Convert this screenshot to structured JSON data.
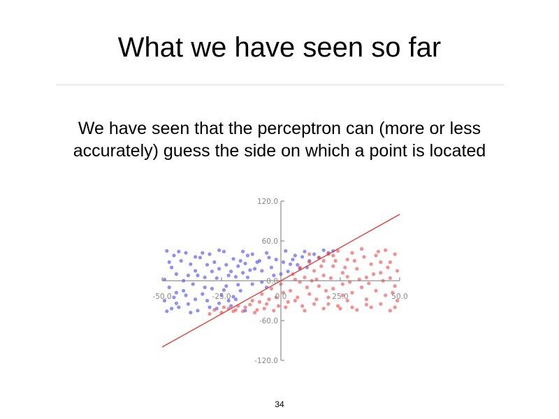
{
  "slide": {
    "title": "What we have seen so far",
    "body_lines": [
      "We have seen that the perceptron can (more or less",
      "accurately) guess the side on which a point is located"
    ],
    "page_number": "34"
  },
  "colors": {
    "class_a": "#3333ee",
    "class_b": "#ee3333",
    "boundary": "#e8362e",
    "axis": "#777777",
    "tick_label": "#888888"
  },
  "chart_data": {
    "type": "scatter",
    "xlim": [
      -50,
      50
    ],
    "ylim": [
      -120,
      120
    ],
    "x_ticks": [
      "-50.0",
      "-25.0",
      "0.0",
      "25.0",
      "50.0"
    ],
    "y_ticks": [
      "120.0",
      "60.0",
      "0.0",
      "-60.0",
      "-120.0"
    ],
    "grid": false,
    "boundary_line": {
      "x": [
        -50,
        50
      ],
      "y": [
        -100,
        100
      ]
    },
    "series": [
      {
        "color": "#3333ee",
        "points": [
          [
            -48,
            45
          ],
          [
            -45,
            38
          ],
          [
            -42,
            30
          ],
          [
            -46,
            20
          ],
          [
            -44,
            10
          ],
          [
            -40,
            42
          ],
          [
            -38,
            25
          ],
          [
            -36,
            15
          ],
          [
            -34,
            35
          ],
          [
            -32,
            5
          ],
          [
            -30,
            40
          ],
          [
            -28,
            28
          ],
          [
            -26,
            18
          ],
          [
            -24,
            44
          ],
          [
            -22,
            8
          ],
          [
            -20,
            33
          ],
          [
            -18,
            22
          ],
          [
            -16,
            12
          ],
          [
            -14,
            38
          ],
          [
            -12,
            -5
          ],
          [
            -10,
            28
          ],
          [
            -8,
            15
          ],
          [
            -6,
            42
          ],
          [
            -4,
            20
          ],
          [
            -2,
            32
          ],
          [
            0,
            10
          ],
          [
            2,
            45
          ],
          [
            4,
            25
          ],
          [
            6,
            38
          ],
          [
            8,
            18
          ],
          [
            10,
            44
          ],
          [
            12,
            30
          ],
          [
            14,
            40
          ],
          [
            16,
            35
          ],
          [
            18,
            46
          ],
          [
            20,
            42
          ],
          [
            22,
            45
          ],
          [
            -47,
            -10
          ],
          [
            -45,
            -25
          ],
          [
            -43,
            -40
          ],
          [
            -41,
            -15
          ],
          [
            -39,
            -35
          ],
          [
            -37,
            -5
          ],
          [
            -35,
            -45
          ],
          [
            -33,
            -20
          ],
          [
            -31,
            -30
          ],
          [
            -29,
            -12
          ],
          [
            -27,
            -42
          ],
          [
            -25,
            -22
          ],
          [
            -23,
            -8
          ],
          [
            -21,
            -38
          ],
          [
            -19,
            -28
          ],
          [
            -17,
            -15
          ],
          [
            -15,
            -45
          ],
          [
            -49,
            -30
          ],
          [
            -46,
            -42
          ],
          [
            -44,
            -18
          ],
          [
            -41,
            0
          ],
          [
            -38,
            -48
          ],
          [
            -35,
            8
          ],
          [
            -32,
            -10
          ],
          [
            -29,
            14
          ],
          [
            -26,
            -34
          ],
          [
            -23,
            24
          ],
          [
            -20,
            -24
          ],
          [
            -17,
            30
          ],
          [
            -14,
            5
          ],
          [
            -11,
            18
          ],
          [
            -8,
            -2
          ],
          [
            -5,
            35
          ],
          [
            -3,
            8
          ],
          [
            1,
            28
          ],
          [
            3,
            14
          ],
          [
            5,
            32
          ],
          [
            7,
            24
          ],
          [
            9,
            36
          ],
          [
            11,
            20
          ],
          [
            -49,
            2
          ],
          [
            -47,
            28
          ],
          [
            -43,
            44
          ],
          [
            -39,
            8
          ],
          [
            -36,
            -28
          ],
          [
            -33,
            42
          ],
          [
            -30,
            -40
          ],
          [
            -27,
            4
          ],
          [
            -24,
            -14
          ],
          [
            -21,
            14
          ],
          [
            -18,
            -6
          ],
          [
            -15,
            26
          ],
          [
            -12,
            40
          ],
          [
            -9,
            30
          ],
          [
            -6,
            -10
          ],
          [
            -48,
            -46
          ],
          [
            -44,
            -34
          ],
          [
            -40,
            -22
          ],
          [
            -36,
            36
          ],
          [
            -31,
            24
          ],
          [
            -26,
            46
          ],
          [
            -22,
            -30
          ],
          [
            -19,
            6
          ],
          [
            -16,
            44
          ],
          [
            -13,
            16
          ]
        ]
      },
      {
        "color": "#ee3333",
        "points": [
          [
            -30,
            -50
          ],
          [
            -28,
            -44
          ],
          [
            -25,
            -48
          ],
          [
            -22,
            -42
          ],
          [
            -20,
            -46
          ],
          [
            -18,
            -38
          ],
          [
            -15,
            -40
          ],
          [
            -12,
            -30
          ],
          [
            -10,
            -44
          ],
          [
            -8,
            -20
          ],
          [
            -6,
            -35
          ],
          [
            -4,
            -12
          ],
          [
            -2,
            -25
          ],
          [
            0,
            -5
          ],
          [
            2,
            -40
          ],
          [
            4,
            -15
          ],
          [
            6,
            -30
          ],
          [
            8,
            -2
          ],
          [
            10,
            -45
          ],
          [
            12,
            -20
          ],
          [
            14,
            -35
          ],
          [
            16,
            -8
          ],
          [
            18,
            -42
          ],
          [
            20,
            -25
          ],
          [
            22,
            -12
          ],
          [
            24,
            -38
          ],
          [
            26,
            -5
          ],
          [
            28,
            -30
          ],
          [
            30,
            -18
          ],
          [
            32,
            -44
          ],
          [
            34,
            -10
          ],
          [
            36,
            -28
          ],
          [
            38,
            -40
          ],
          [
            40,
            -15
          ],
          [
            42,
            -35
          ],
          [
            44,
            -22
          ],
          [
            46,
            -45
          ],
          [
            48,
            -8
          ],
          [
            49,
            -30
          ],
          [
            5,
            10
          ],
          [
            8,
            20
          ],
          [
            10,
            5
          ],
          [
            12,
            28
          ],
          [
            14,
            15
          ],
          [
            16,
            35
          ],
          [
            18,
            8
          ],
          [
            20,
            40
          ],
          [
            22,
            22
          ],
          [
            24,
            45
          ],
          [
            26,
            12
          ],
          [
            28,
            32
          ],
          [
            30,
            42
          ],
          [
            32,
            18
          ],
          [
            34,
            48
          ],
          [
            36,
            5
          ],
          [
            38,
            25
          ],
          [
            40,
            38
          ],
          [
            42,
            12
          ],
          [
            44,
            46
          ],
          [
            46,
            28
          ],
          [
            48,
            40
          ],
          [
            49,
            15
          ],
          [
            33,
            2
          ],
          [
            35,
            36
          ],
          [
            37,
            -4
          ],
          [
            39,
            10
          ],
          [
            41,
            44
          ],
          [
            43,
            0
          ],
          [
            45,
            20
          ],
          [
            47,
            -18
          ],
          [
            25,
            -42
          ],
          [
            27,
            20
          ],
          [
            29,
            -2
          ],
          [
            31,
            30
          ],
          [
            21,
            4
          ],
          [
            23,
            30
          ],
          [
            19,
            -15
          ],
          [
            17,
            22
          ],
          [
            15,
            -28
          ],
          [
            13,
            0
          ],
          [
            11,
            -10
          ],
          [
            9,
            -38
          ],
          [
            7,
            -25
          ],
          [
            3,
            -32
          ],
          [
            1,
            -18
          ],
          [
            -1,
            -38
          ],
          [
            -3,
            -45
          ],
          [
            -5,
            -28
          ],
          [
            -7,
            -42
          ],
          [
            -9,
            -32
          ],
          [
            -11,
            -48
          ],
          [
            -13,
            -36
          ],
          [
            -16,
            -46
          ],
          [
            -19,
            -44
          ],
          [
            -24,
            -40
          ],
          [
            6,
            2
          ],
          [
            15,
            2
          ],
          [
            20,
            -35
          ],
          [
            28,
            6
          ],
          [
            36,
            -36
          ],
          [
            42,
            28
          ],
          [
            46,
            4
          ],
          [
            48,
            -40
          ],
          [
            30,
            -40
          ],
          [
            26,
            -22
          ],
          [
            18,
            30
          ],
          [
            12,
            40
          ],
          [
            22,
            38
          ]
        ]
      }
    ]
  }
}
